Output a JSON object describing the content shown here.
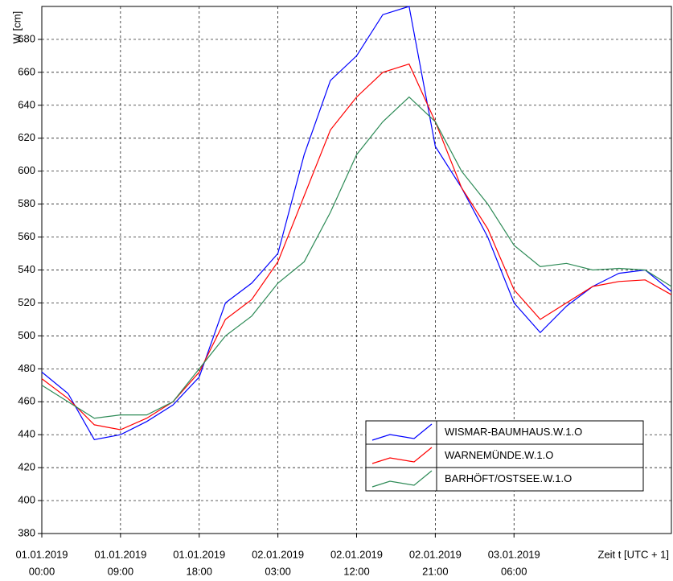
{
  "chart_data": {
    "type": "line",
    "y_label": "W [cm]",
    "x_label": "Zeit t [UTC + 1]",
    "x": [
      "2019-01-01T00:00",
      "2019-01-01T03:00",
      "2019-01-01T06:00",
      "2019-01-01T09:00",
      "2019-01-01T12:00",
      "2019-01-01T15:00",
      "2019-01-01T18:00",
      "2019-01-01T21:00",
      "2019-01-02T00:00",
      "2019-01-02T03:00",
      "2019-01-02T06:00",
      "2019-01-02T09:00",
      "2019-01-02T12:00",
      "2019-01-02T15:00",
      "2019-01-02T18:00",
      "2019-01-02T21:00",
      "2019-01-03T00:00",
      "2019-01-03T03:00",
      "2019-01-03T06:00",
      "2019-01-03T09:00",
      "2019-01-03T12:00",
      "2019-01-03T15:00",
      "2019-01-03T18:00",
      "2019-01-03T21:00",
      "2019-01-04T00:00"
    ],
    "series": [
      {
        "name": "WISMAR-BAUMHAUS.W.1.O",
        "color": "#0000ff",
        "values": [
          478,
          465,
          437,
          440,
          448,
          458,
          475,
          520,
          532,
          550,
          610,
          655,
          670,
          695,
          700,
          615,
          590,
          560,
          520,
          502,
          518,
          530,
          538,
          540,
          527
        ]
      },
      {
        "name": "WARNEMÜNDE.W.1.O",
        "color": "#ff0000",
        "values": [
          474,
          462,
          446,
          443,
          450,
          460,
          478,
          510,
          522,
          545,
          585,
          625,
          645,
          660,
          665,
          630,
          590,
          565,
          528,
          510,
          520,
          530,
          533,
          534,
          525
        ]
      },
      {
        "name": "BARHÖFT/OSTSEE.W.1.O",
        "color": "#2e8b57",
        "values": [
          470,
          460,
          450,
          452,
          452,
          460,
          480,
          500,
          512,
          532,
          545,
          575,
          610,
          630,
          645,
          630,
          600,
          580,
          555,
          542,
          544,
          540,
          541,
          540,
          530
        ]
      }
    ],
    "xlim": [
      "2019-01-01T00:00",
      "2019-01-04T00:00"
    ],
    "xticks": [
      {
        "value": "2019-01-01T00:00",
        "label": [
          "01.01.2019",
          "00:00"
        ]
      },
      {
        "value": "2019-01-01T09:00",
        "label": [
          "01.01.2019",
          "09:00"
        ]
      },
      {
        "value": "2019-01-01T18:00",
        "label": [
          "01.01.2019",
          "18:00"
        ]
      },
      {
        "value": "2019-01-02T03:00",
        "label": [
          "02.01.2019",
          "03:00"
        ]
      },
      {
        "value": "2019-01-02T12:00",
        "label": [
          "02.01.2019",
          "12:00"
        ]
      },
      {
        "value": "2019-01-02T21:00",
        "label": [
          "02.01.2019",
          "21:00"
        ]
      },
      {
        "value": "2019-01-03T06:00",
        "label": [
          "03.01.2019",
          "06:00"
        ]
      }
    ],
    "ylim": [
      380,
      700
    ],
    "yticks": [
      380,
      400,
      420,
      440,
      460,
      480,
      500,
      520,
      540,
      560,
      580,
      600,
      620,
      640,
      660,
      680
    ],
    "grid": true,
    "legend": "lower right"
  }
}
